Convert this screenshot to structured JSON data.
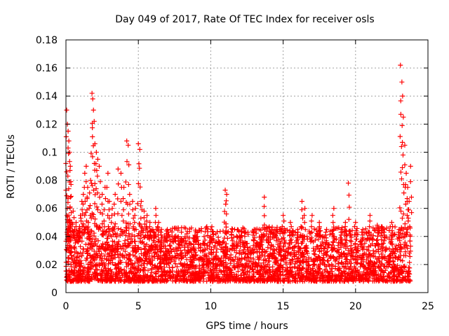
{
  "chart_data": {
    "type": "scatter",
    "title": "Day 049 of 2017, Rate Of TEC Index for receiver osls",
    "xlabel": "GPS time / hours",
    "ylabel": "ROTI / TECUs",
    "xlim": [
      0,
      25
    ],
    "ylim": [
      0,
      0.18
    ],
    "x_ticks": [
      0,
      5,
      10,
      15,
      20,
      25
    ],
    "x_tick_labels": [
      "0",
      "5",
      "10",
      "15",
      "20",
      "25"
    ],
    "y_ticks": [
      0,
      0.02,
      0.04,
      0.06,
      0.08,
      0.1,
      0.12,
      0.14,
      0.16,
      0.18
    ],
    "y_tick_labels": [
      "0",
      "0.02",
      "0.04",
      "0.06",
      "0.08",
      "0.1",
      "0.12",
      "0.14",
      "0.16",
      "0.18"
    ],
    "grid": true,
    "marker": "+",
    "series_color": "#ff0000",
    "series": [
      {
        "x": [
          0.05,
          0.1,
          0.15,
          0.2,
          0.25,
          0.3,
          0.35,
          0.1,
          0.2,
          0.3,
          0.15,
          0.25,
          0.4,
          0.5,
          0.6,
          0.7,
          0.8,
          0.9,
          1.0,
          1.1,
          1.2,
          1.3,
          1.4,
          1.5,
          1.6,
          1.7,
          1.8,
          1.85,
          1.9,
          1.95,
          2.0,
          2.1,
          2.2,
          2.3,
          2.5,
          2.7,
          2.9,
          3.0,
          3.2,
          3.4,
          3.6,
          3.8,
          4.0,
          4.2,
          4.3,
          4.4,
          4.6,
          4.8,
          5.0,
          5.1,
          5.2,
          5.4,
          5.6,
          5.8,
          6.0,
          6.2,
          6.4,
          6.6,
          6.8,
          7.0,
          7.5,
          8.0,
          8.5,
          9.0,
          9.5,
          10.0,
          10.5,
          11.0,
          11.1,
          11.5,
          12.0,
          12.5,
          13.0,
          13.5,
          13.7,
          14.0,
          14.5,
          15.0,
          15.5,
          16.0,
          16.3,
          16.5,
          17.0,
          17.5,
          18.0,
          18.5,
          19.0,
          19.3,
          19.5,
          20.0,
          20.5,
          21.0,
          21.5,
          22.0,
          22.5,
          23.0,
          23.1,
          23.2,
          23.25,
          23.3,
          23.4,
          23.5,
          23.6,
          23.7,
          23.8
        ],
        "y": [
          0.13,
          0.12,
          0.115,
          0.108,
          0.1,
          0.09,
          0.077,
          0.06,
          0.055,
          0.05,
          0.045,
          0.04,
          0.05,
          0.058,
          0.045,
          0.05,
          0.042,
          0.04,
          0.055,
          0.065,
          0.07,
          0.085,
          0.09,
          0.075,
          0.06,
          0.08,
          0.142,
          0.138,
          0.13,
          0.122,
          0.106,
          0.1,
          0.095,
          0.09,
          0.07,
          0.075,
          0.085,
          0.065,
          0.06,
          0.07,
          0.088,
          0.085,
          0.075,
          0.108,
          0.105,
          0.07,
          0.065,
          0.06,
          0.106,
          0.102,
          0.065,
          0.058,
          0.055,
          0.05,
          0.045,
          0.06,
          0.05,
          0.045,
          0.04,
          0.045,
          0.04,
          0.038,
          0.035,
          0.04,
          0.035,
          0.04,
          0.035,
          0.073,
          0.07,
          0.045,
          0.04,
          0.035,
          0.045,
          0.04,
          0.068,
          0.04,
          0.045,
          0.055,
          0.05,
          0.045,
          0.065,
          0.06,
          0.055,
          0.05,
          0.045,
          0.06,
          0.045,
          0.05,
          0.078,
          0.05,
          0.045,
          0.055,
          0.048,
          0.045,
          0.05,
          0.045,
          0.162,
          0.15,
          0.14,
          0.125,
          0.105,
          0.085,
          0.075,
          0.065,
          0.09
        ],
        "band_low": 0.008,
        "band_high": 0.035
      }
    ]
  }
}
